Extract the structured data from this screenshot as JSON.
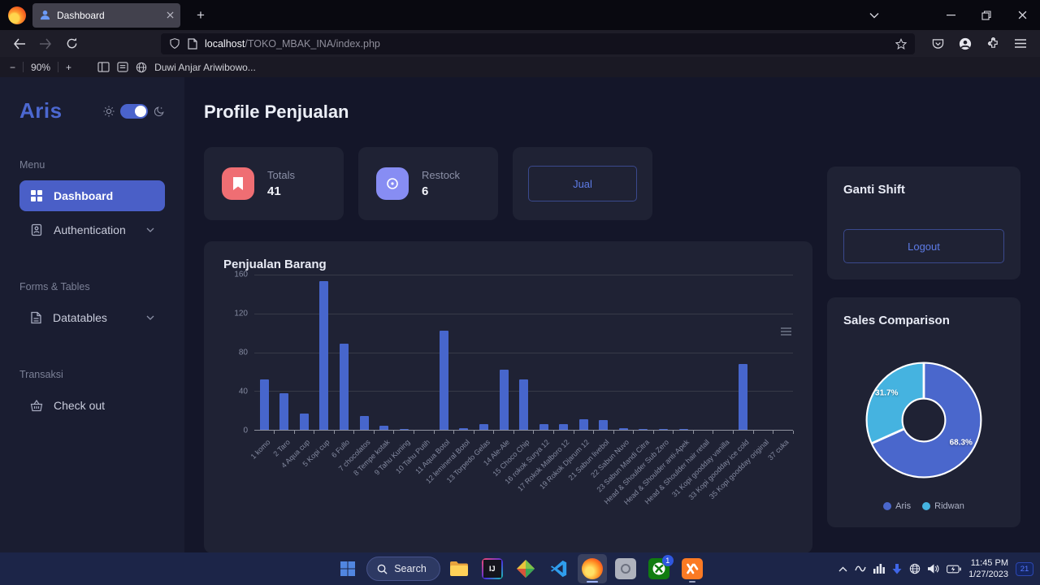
{
  "browser": {
    "tab_title": "Dashboard",
    "url_host": "localhost",
    "url_path": "/TOKO_MBAK_INA/index.php",
    "zoom_minus": "−",
    "zoom_level": "90%",
    "zoom_plus": "+",
    "bookmark_label": "Duwi Anjar Ariwibowo..."
  },
  "sidebar": {
    "logo": "Aris",
    "sections": [
      {
        "label": "Menu",
        "items": [
          {
            "label": "Dashboard",
            "icon": "grid-icon",
            "active": true
          },
          {
            "label": "Authentication",
            "icon": "id-badge-icon",
            "chevron": true
          }
        ]
      },
      {
        "label": "Forms & Tables",
        "items": [
          {
            "label": "Datatables",
            "icon": "file-icon",
            "chevron": true
          }
        ]
      },
      {
        "label": "Transaksi",
        "items": [
          {
            "label": "Check out",
            "icon": "basket-icon"
          }
        ]
      }
    ]
  },
  "main": {
    "title": "Profile Penjualan",
    "stats": [
      {
        "label": "Totals",
        "value": "41",
        "icon": "bookmark-icon",
        "icon_color": "#ef6e73"
      },
      {
        "label": "Restock",
        "value": "6",
        "icon": "eye-icon",
        "icon_color": "#878df3"
      }
    ],
    "jual_button": "Jual",
    "chart_title": "Penjualan Barang"
  },
  "right": {
    "shift_card": {
      "title": "Ganti Shift",
      "button": "Logout"
    },
    "sales_card": {
      "title": "Sales Comparison"
    }
  },
  "chart_data": [
    {
      "type": "bar",
      "title": "Penjualan Barang",
      "categories": [
        "1 komo",
        "2 Taro",
        "4 Aqua cup",
        "5 Kopi cup",
        "6 Fullo",
        "7 chocolatos",
        "8 Tempe kotak",
        "9 Tahu Kuning",
        "10 Tahu Putih",
        "11 Aqua Botol",
        "12 lemineral Botol",
        "13 Torpedo Gelas",
        "14 Ale-Ale",
        "15 Choco Chip",
        "16 rokok Surya 12",
        "17 Rokok Malboro 12",
        "19 Rokok Djarum 12",
        "21 Sabun livebol",
        "22 Sabun Nuvo",
        "23 Sabun Mandi Citra",
        "Head & Shoulder Sub Zero",
        "Head & Shoulder anti-Apek",
        "Head & Shoulder hair retail",
        "31 Kopi goodday vanilla",
        "33 Kopi goodday ice cold",
        "35 Kopi goodday original",
        "37 cuka"
      ],
      "values": [
        52,
        38,
        17,
        153,
        89,
        14,
        4,
        1,
        0,
        102,
        2,
        6,
        62,
        52,
        6,
        6,
        11,
        10,
        2,
        1,
        1,
        1,
        0,
        0,
        68,
        0,
        0
      ],
      "ylim": [
        0,
        160
      ],
      "yticks": [
        0,
        40,
        80,
        120,
        160
      ],
      "bar_color": "#4766cc",
      "grid": true,
      "legend": "none"
    },
    {
      "type": "pie",
      "title": "Sales Comparison",
      "donut": true,
      "legend_position": "bottom",
      "series": [
        {
          "name": "Aris",
          "value": 68.3,
          "label": "68.3%",
          "color": "#4a67cc"
        },
        {
          "name": "Ridwan",
          "value": 31.7,
          "label": "31.7%",
          "color": "#45b3e0"
        }
      ]
    }
  ],
  "taskbar": {
    "search_label": "Search",
    "time": "11:45 PM",
    "date": "1/27/2023",
    "notification_count": "21",
    "xbox_badge": "1"
  }
}
